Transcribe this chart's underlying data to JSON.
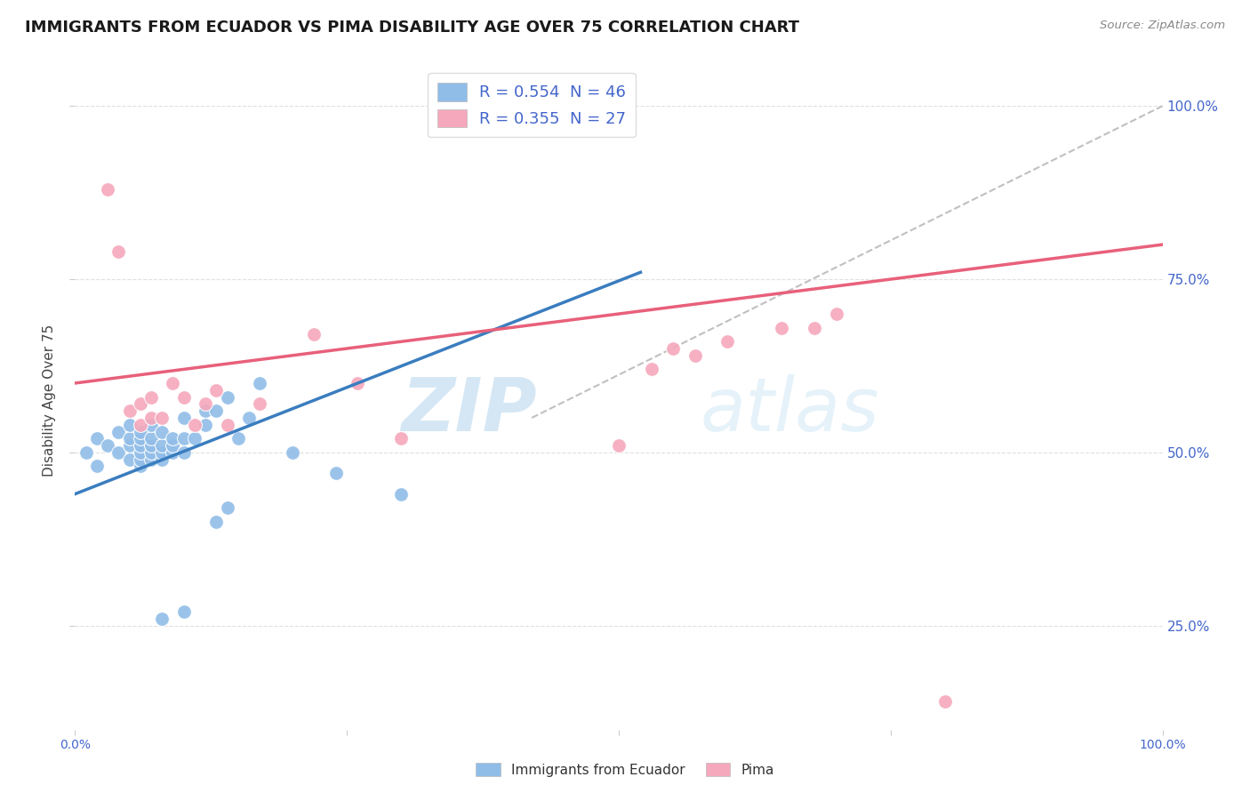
{
  "title": "IMMIGRANTS FROM ECUADOR VS PIMA DISABILITY AGE OVER 75 CORRELATION CHART",
  "source": "Source: ZipAtlas.com",
  "ylabel": "Disability Age Over 75",
  "legend_label1": "Immigrants from Ecuador",
  "legend_label2": "Pima",
  "r1": 0.554,
  "n1": 46,
  "r2": 0.355,
  "n2": 27,
  "color_blue": "#90bde8",
  "color_pink": "#f5a8bc",
  "line_color_blue": "#3a7dbf",
  "line_color_pink": "#e8607a",
  "line_color_diagonal": "#c0c0c0",
  "background_color": "#ffffff",
  "grid_color": "#dddddd",
  "title_color": "#1a1a1a",
  "title_fontsize": 13,
  "axis_label_color": "#4466cc",
  "right_axis_color": "#4466cc",
  "blue_line_x0": 0.0,
  "blue_line_y0": 0.44,
  "blue_line_x1": 0.52,
  "blue_line_y1": 0.76,
  "pink_line_x0": 0.0,
  "pink_line_y0": 0.6,
  "pink_line_x1": 1.0,
  "pink_line_y1": 0.8,
  "diag_line_x0": 0.42,
  "diag_line_y0": 0.55,
  "diag_line_x1": 1.0,
  "diag_line_y1": 1.0,
  "blue_points_x": [
    0.01,
    0.02,
    0.02,
    0.03,
    0.04,
    0.04,
    0.05,
    0.05,
    0.05,
    0.05,
    0.06,
    0.06,
    0.06,
    0.06,
    0.06,
    0.06,
    0.07,
    0.07,
    0.07,
    0.07,
    0.07,
    0.08,
    0.08,
    0.08,
    0.08,
    0.09,
    0.09,
    0.09,
    0.1,
    0.1,
    0.1,
    0.11,
    0.12,
    0.12,
    0.13,
    0.14,
    0.15,
    0.16,
    0.17,
    0.2,
    0.08,
    0.1,
    0.13,
    0.14,
    0.24,
    0.3
  ],
  "blue_points_y": [
    0.5,
    0.48,
    0.52,
    0.51,
    0.5,
    0.53,
    0.49,
    0.51,
    0.52,
    0.54,
    0.48,
    0.49,
    0.5,
    0.51,
    0.52,
    0.53,
    0.49,
    0.5,
    0.51,
    0.52,
    0.54,
    0.49,
    0.5,
    0.51,
    0.53,
    0.5,
    0.51,
    0.52,
    0.5,
    0.52,
    0.55,
    0.52,
    0.54,
    0.56,
    0.56,
    0.58,
    0.52,
    0.55,
    0.6,
    0.5,
    0.26,
    0.27,
    0.4,
    0.42,
    0.47,
    0.44
  ],
  "pink_points_x": [
    0.03,
    0.05,
    0.06,
    0.06,
    0.07,
    0.07,
    0.08,
    0.09,
    0.1,
    0.11,
    0.12,
    0.13,
    0.14,
    0.17,
    0.22,
    0.26,
    0.5,
    0.53,
    0.55,
    0.57,
    0.6,
    0.65,
    0.68,
    0.7,
    0.04,
    0.3,
    0.8
  ],
  "pink_points_y": [
    0.88,
    0.56,
    0.54,
    0.57,
    0.55,
    0.58,
    0.55,
    0.6,
    0.58,
    0.54,
    0.57,
    0.59,
    0.54,
    0.57,
    0.67,
    0.6,
    0.51,
    0.62,
    0.65,
    0.64,
    0.66,
    0.68,
    0.68,
    0.7,
    0.79,
    0.52,
    0.14
  ],
  "watermark_zip": "ZIP",
  "watermark_atlas": "atlas",
  "ylim_min": 0.1,
  "ylim_max": 1.05,
  "xlim_min": 0.0,
  "xlim_max": 1.0
}
